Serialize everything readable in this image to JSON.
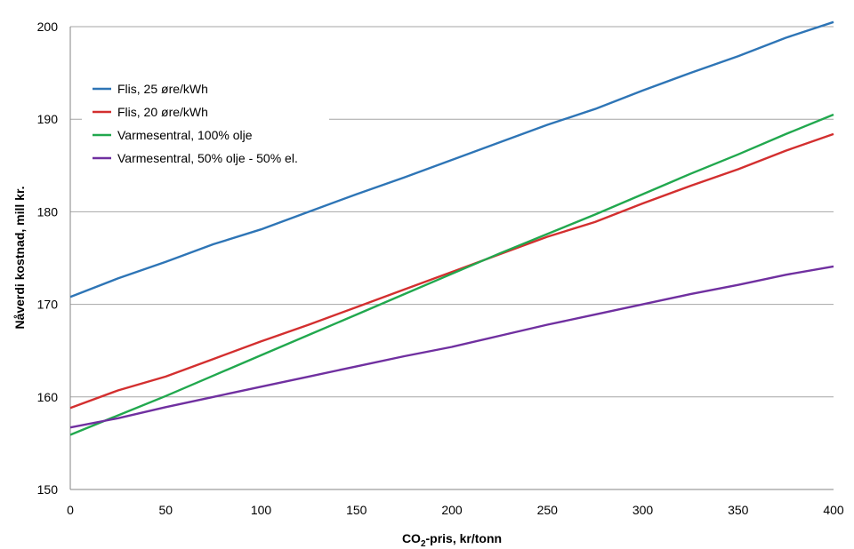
{
  "chart_data": {
    "type": "line",
    "x": [
      0,
      25,
      50,
      75,
      100,
      125,
      150,
      175,
      200,
      225,
      250,
      275,
      300,
      325,
      350,
      375,
      400
    ],
    "xlabel_main": "CO",
    "xlabel_sub": "2",
    "xlabel_rest": "-pris, kr/tonn",
    "ylabel": "Nåverdi kostnad, mill kr.",
    "xlim": [
      0,
      400
    ],
    "ylim": [
      150,
      200
    ],
    "xticks": [
      0,
      50,
      100,
      150,
      200,
      250,
      300,
      350,
      400
    ],
    "yticks": [
      150,
      160,
      170,
      180,
      190,
      200
    ],
    "grid": "horizontal",
    "legend_position": "top-left",
    "series": [
      {
        "name": "Flis, 25 øre/kWh",
        "color": "#2e75b6",
        "values": [
          170.8,
          172.8,
          174.6,
          176.5,
          178.1,
          180.0,
          181.9,
          183.7,
          185.6,
          187.5,
          189.4,
          191.1,
          193.1,
          195.0,
          196.8,
          198.8,
          200.5
        ]
      },
      {
        "name": "Flis, 20 øre/kWh",
        "color": "#d32f2f",
        "values": [
          158.8,
          160.7,
          162.2,
          164.1,
          166.0,
          167.8,
          169.7,
          171.6,
          173.5,
          175.4,
          177.3,
          178.9,
          180.9,
          182.8,
          184.6,
          186.6,
          188.4
        ]
      },
      {
        "name": "Varmesentral, 100% olje",
        "color": "#21a84e",
        "values": [
          155.9,
          158.0,
          160.1,
          162.3,
          164.5,
          166.7,
          168.9,
          171.1,
          173.3,
          175.5,
          177.6,
          179.7,
          181.9,
          184.1,
          186.2,
          188.4,
          190.5
        ]
      },
      {
        "name": "Varmesentral, 50% olje - 50% el.",
        "color": "#7030a0",
        "values": [
          156.7,
          157.7,
          158.9,
          160.0,
          161.1,
          162.2,
          163.3,
          164.4,
          165.4,
          166.6,
          167.8,
          168.9,
          170.0,
          171.1,
          172.1,
          173.2,
          174.1
        ]
      }
    ]
  }
}
